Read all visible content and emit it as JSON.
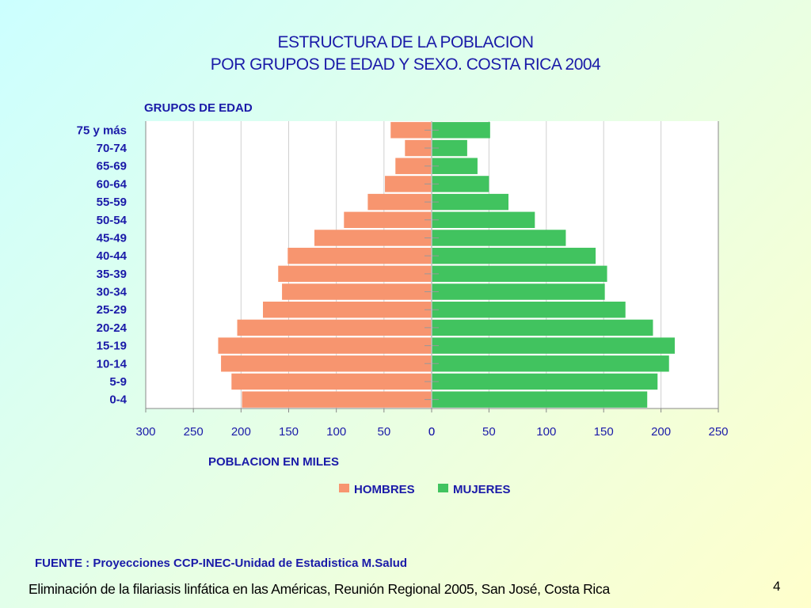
{
  "slide": {
    "title_line1": "ESTRUCTURA DE LA POBLACION",
    "title_line2": "POR GRUPOS DE EDAD Y SEXO. COSTA RICA  2004",
    "source": "FUENTE : Proyecciones CCP-INEC-Unidad de  Estadistica M.Salud",
    "footer": "Eliminación de la filariasis linfática en las Américas, Reunión Regional 2005,  San José, Costa Rica",
    "page_number": "4"
  },
  "chart_data": {
    "type": "bar",
    "orientation": "horizontal",
    "subtype": "population-pyramid",
    "ylabel": "GRUPOS DE EDAD",
    "xlabel": "POBLACION EN MILES",
    "categories": [
      "75 y más",
      "70-74",
      "65-69",
      "60-64",
      "55-59",
      "50-54",
      "45-49",
      "40-44",
      "35-39",
      "30-34",
      "25-29",
      "20-24",
      "15-19",
      "10-14",
      "5-9",
      "0-4"
    ],
    "series": [
      {
        "name": "HOMBRES",
        "color": "#f7956f",
        "side": "left",
        "values": [
          43,
          28,
          38,
          49,
          67,
          92,
          123,
          151,
          161,
          157,
          177,
          204,
          224,
          221,
          210,
          199
        ]
      },
      {
        "name": "MUJERES",
        "color": "#41c35f",
        "side": "right",
        "values": [
          51,
          31,
          40,
          50,
          67,
          90,
          117,
          143,
          153,
          151,
          169,
          193,
          212,
          207,
          197,
          188
        ]
      }
    ],
    "x_left_ticks": [
      "300",
      "250",
      "200",
      "150",
      "100",
      "50",
      "0"
    ],
    "x_right_ticks": [
      "0",
      "50",
      "100",
      "150",
      "200",
      "250"
    ],
    "xlim_left": [
      0,
      300
    ],
    "xlim_right": [
      0,
      250
    ],
    "grid": true,
    "legend_position": "bottom"
  }
}
